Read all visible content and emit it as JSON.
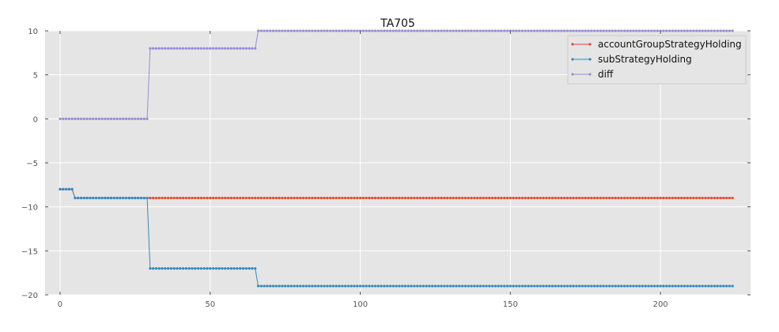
{
  "chart_data": {
    "type": "line",
    "title": "TA705",
    "xlabel": "",
    "ylabel": "",
    "xlim": [
      -5,
      230
    ],
    "ylim": [
      -20,
      10
    ],
    "xticks": [
      0,
      50,
      100,
      150,
      200
    ],
    "yticks": [
      10,
      5,
      0,
      -5,
      -10,
      -15,
      -20
    ],
    "grid": true,
    "legend": "top-right",
    "x_count": 225,
    "series": [
      {
        "name": "accountGroupStrategyHolding",
        "color": "#e24a33",
        "segments": [
          {
            "from": 0,
            "to": 4,
            "value": -8
          },
          {
            "from": 5,
            "to": 224,
            "value": -9
          }
        ]
      },
      {
        "name": "subStrategyHolding",
        "color": "#348abd",
        "segments": [
          {
            "from": 0,
            "to": 4,
            "value": -8
          },
          {
            "from": 5,
            "to": 29,
            "value": -9
          },
          {
            "from": 30,
            "to": 65,
            "value": -17
          },
          {
            "from": 66,
            "to": 224,
            "value": -19
          }
        ]
      },
      {
        "name": "diff",
        "color": "#988ed5",
        "segments": [
          {
            "from": 0,
            "to": 29,
            "value": 0
          },
          {
            "from": 30,
            "to": 65,
            "value": 8
          },
          {
            "from": 66,
            "to": 224,
            "value": 10
          }
        ]
      }
    ]
  }
}
